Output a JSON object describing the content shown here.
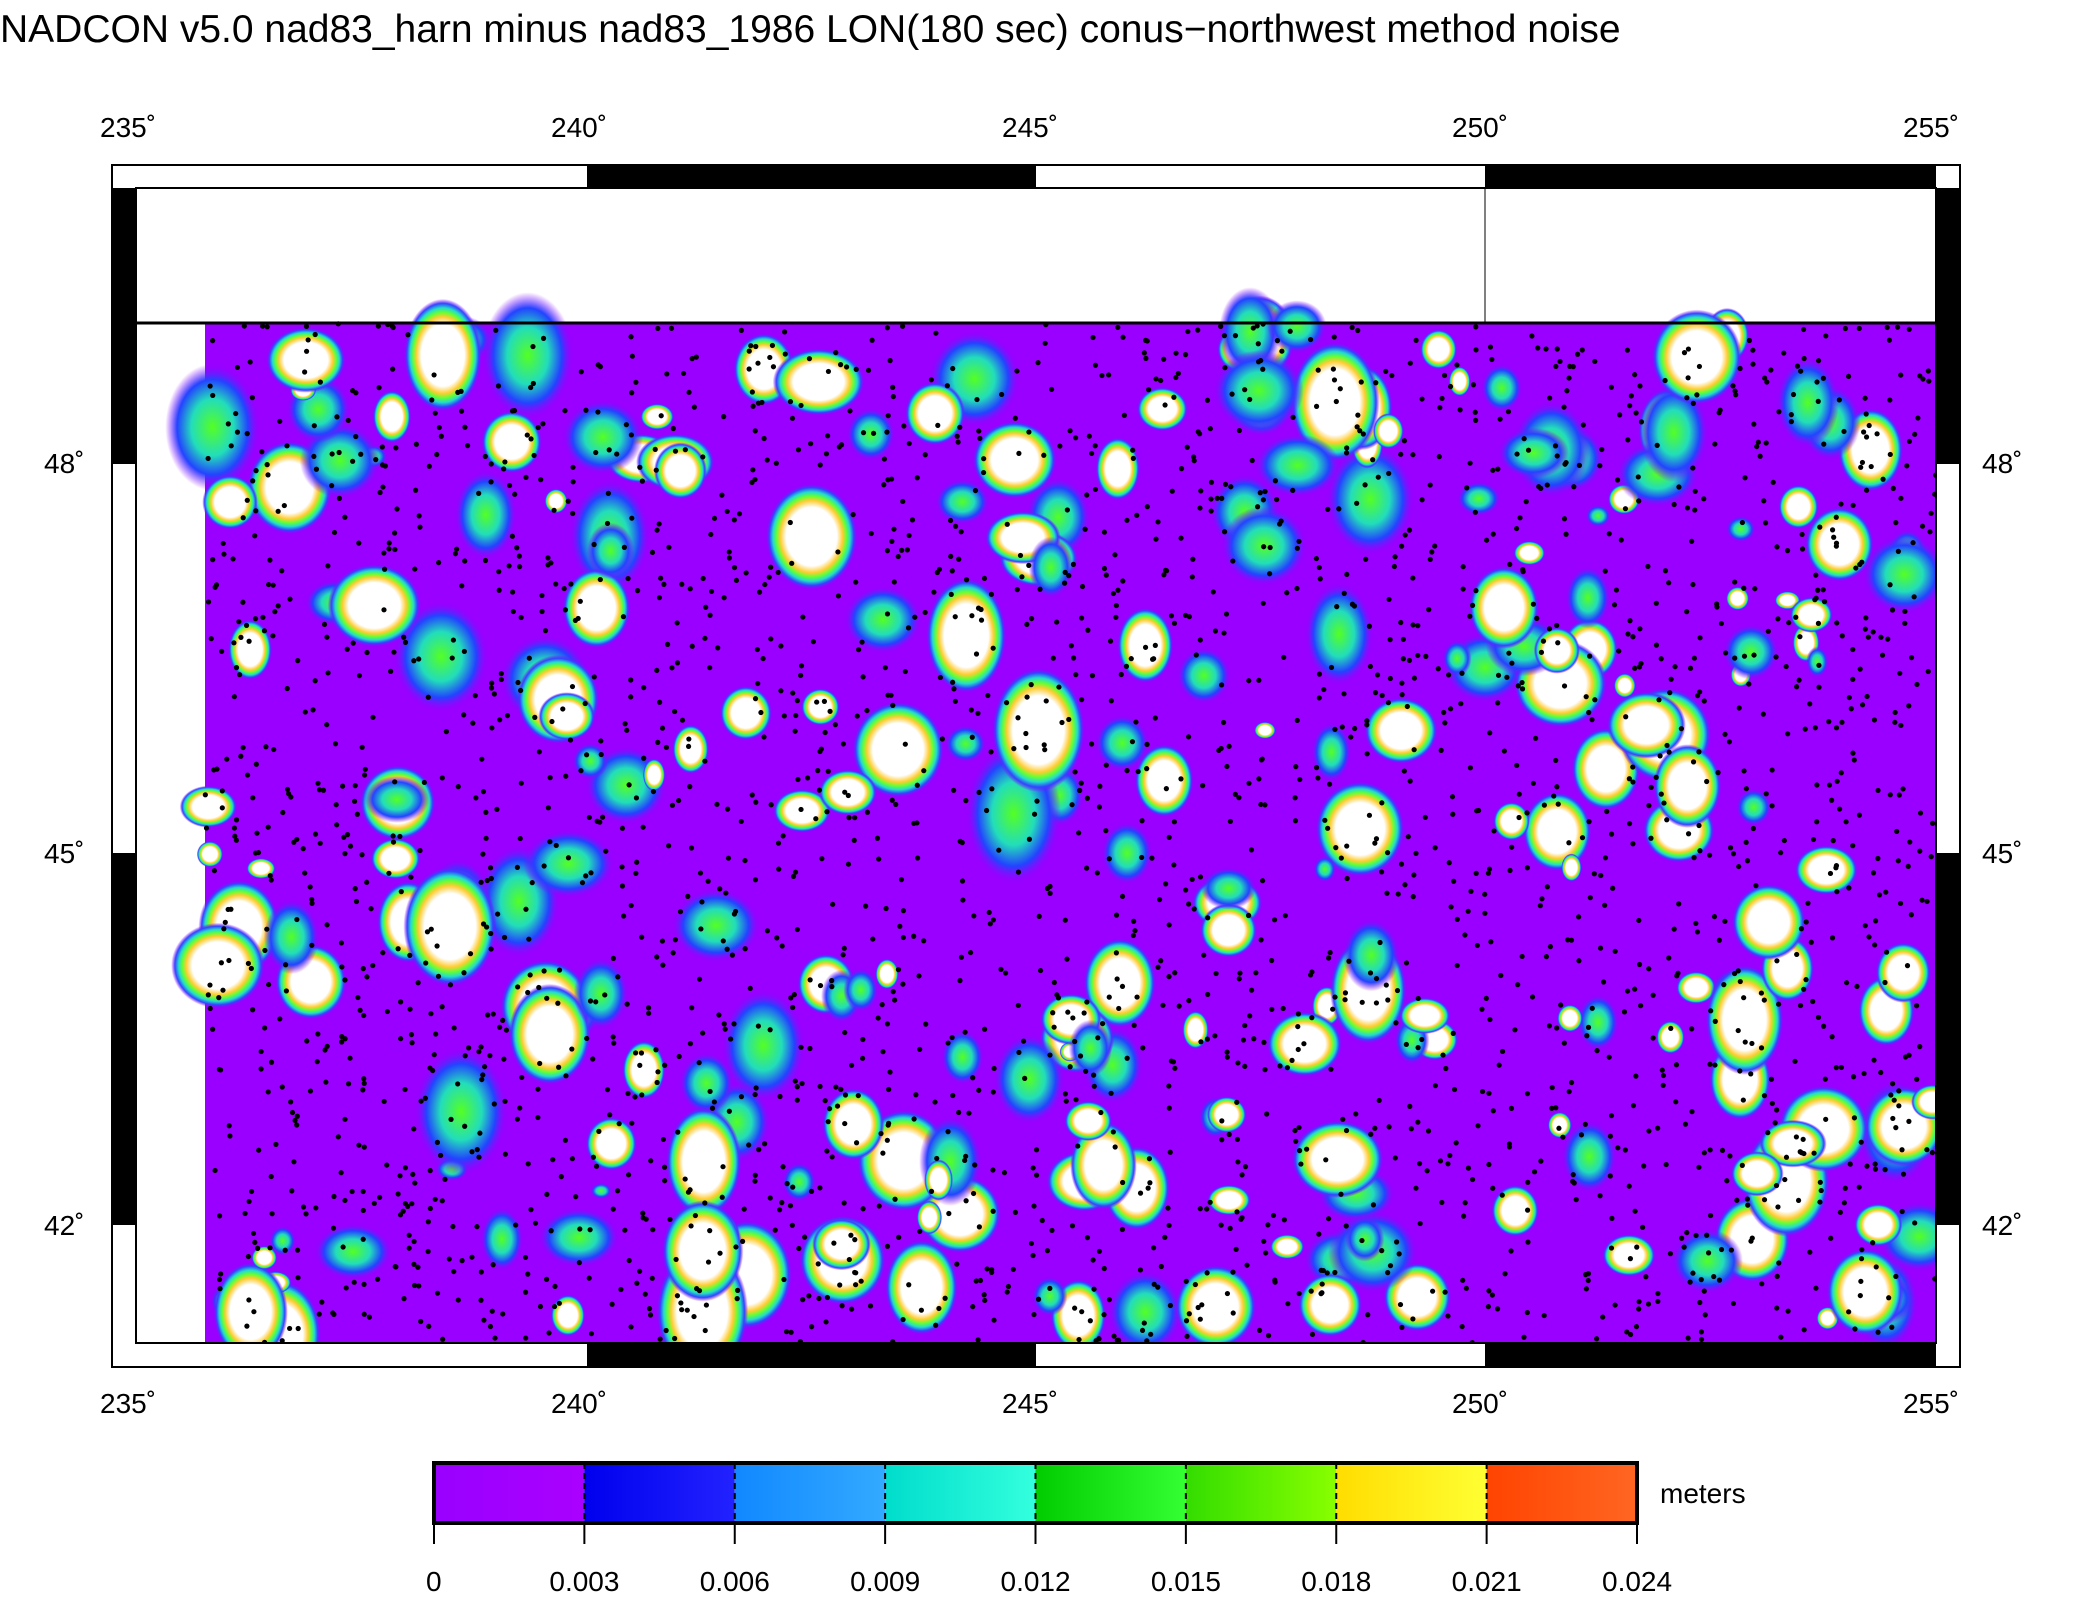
{
  "title": "NADCON v5.0 nad83_harn minus nad83_1986 LON(180 sec) conus−northwest method noise",
  "map": {
    "lon_range": [
      235,
      255
    ],
    "lat_range": [
      40.5,
      49.2
    ],
    "x_ticks": [
      "235˚",
      "240˚",
      "245˚",
      "250˚",
      "255˚"
    ],
    "y_ticks": [
      "48˚",
      "45˚",
      "42˚"
    ],
    "land_fill_description_colors": {
      "low": "#9900ff",
      "background_point": "#000000",
      "high": "#ffffff"
    }
  },
  "colorbar": {
    "unit_label": "meters",
    "tick_labels": [
      "0",
      "0.003",
      "0.006",
      "0.009",
      "0.012",
      "0.015",
      "0.018",
      "0.021",
      "0.024"
    ],
    "colors": [
      [
        "#9900ff",
        "#aa00ff"
      ],
      [
        "#0000ee",
        "#2222ff"
      ],
      [
        "#1188ff",
        "#33aaff"
      ],
      [
        "#00ddcc",
        "#33ffdd"
      ],
      [
        "#00cc00",
        "#33ff33"
      ],
      [
        "#33dd00",
        "#88ff00"
      ],
      [
        "#ffdd00",
        "#ffff33"
      ],
      [
        "#ff4400",
        "#ff6622"
      ]
    ]
  }
}
